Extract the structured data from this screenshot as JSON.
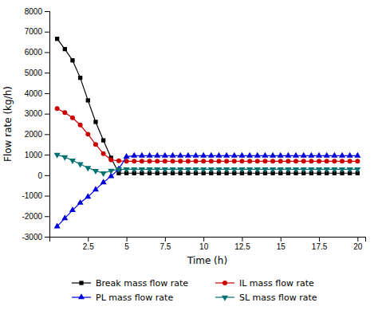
{
  "chart_data": {
    "type": "line",
    "xlabel": "Time (h)",
    "ylabel": "Flow rate (kg/h)",
    "x": [
      0.5,
      1.0,
      1.5,
      2.0,
      2.5,
      3.0,
      3.5,
      4.0,
      4.5,
      5.0,
      5.5,
      6.0,
      6.5,
      7.0,
      7.5,
      8.0,
      8.5,
      9.0,
      9.5,
      10.0,
      10.5,
      11.0,
      11.5,
      12.0,
      12.5,
      13.0,
      13.5,
      14.0,
      14.5,
      15.0,
      15.5,
      16.0,
      16.5,
      17.0,
      17.5,
      18.0,
      18.5,
      19.0,
      19.5,
      20.0
    ],
    "xlim": [
      0,
      20.5
    ],
    "ylim": [
      -3000,
      8000
    ],
    "xticks": [
      2.5,
      5,
      7.5,
      10,
      12.5,
      15,
      17.5,
      20
    ],
    "yticks": [
      -3000,
      -2000,
      -1000,
      0,
      1000,
      2000,
      3000,
      4000,
      5000,
      6000,
      7000,
      8000
    ],
    "grid": false,
    "legend": "bottom",
    "series": [
      {
        "name": "Break mass flow rate",
        "color": "#000000",
        "marker": "square",
        "values": [
          6650,
          6150,
          5600,
          4750,
          3650,
          2600,
          1700,
          850,
          100,
          100,
          100,
          100,
          100,
          100,
          100,
          100,
          100,
          100,
          100,
          100,
          100,
          100,
          100,
          100,
          100,
          100,
          100,
          100,
          100,
          100,
          100,
          100,
          100,
          100,
          100,
          100,
          100,
          100,
          100,
          100
        ]
      },
      {
        "name": "IL mass flow rate",
        "color": "#cc0000",
        "marker": "circle",
        "values": [
          3250,
          3050,
          2800,
          2450,
          2000,
          1500,
          1050,
          750,
          700,
          680,
          680,
          680,
          680,
          680,
          680,
          680,
          680,
          680,
          680,
          680,
          680,
          680,
          680,
          680,
          680,
          680,
          680,
          680,
          680,
          680,
          680,
          680,
          680,
          680,
          680,
          680,
          680,
          680,
          680,
          680
        ]
      },
      {
        "name": "PL mass flow rate",
        "color": "#0000dd",
        "marker": "triangle-up",
        "values": [
          -2500,
          -2100,
          -1700,
          -1350,
          -1050,
          -700,
          -350,
          -50,
          300,
          900,
          950,
          950,
          950,
          950,
          950,
          950,
          950,
          950,
          950,
          950,
          950,
          950,
          950,
          950,
          950,
          950,
          950,
          950,
          950,
          950,
          950,
          950,
          950,
          950,
          950,
          950,
          950,
          950,
          950,
          950
        ]
      },
      {
        "name": "SL mass flow rate",
        "color": "#007070",
        "marker": "triangle-down",
        "values": [
          1000,
          880,
          720,
          540,
          360,
          210,
          100,
          220,
          290,
          290,
          290,
          290,
          290,
          290,
          290,
          290,
          290,
          290,
          290,
          290,
          290,
          290,
          290,
          290,
          290,
          290,
          290,
          290,
          290,
          290,
          290,
          290,
          290,
          290,
          290,
          290,
          290,
          290,
          290,
          290
        ]
      }
    ]
  }
}
